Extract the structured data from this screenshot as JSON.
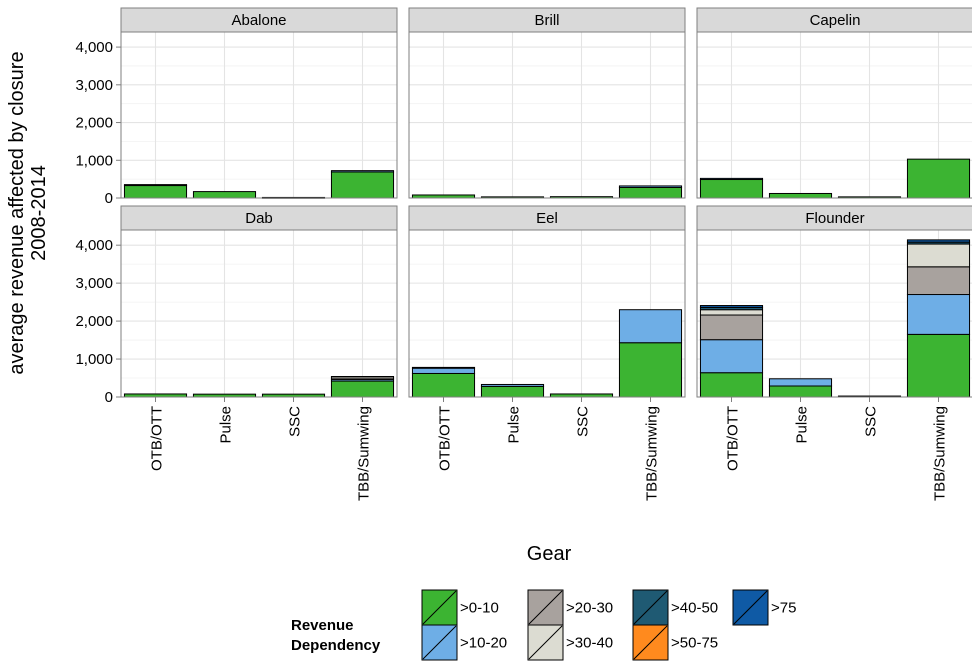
{
  "chart_data": {
    "type": "bar",
    "stacked": true,
    "facet_by": "species",
    "ylabel_lines": [
      "average revenue affected by closure",
      "2008-2014"
    ],
    "xlabel": "Gear",
    "ylim": [
      0,
      4400
    ],
    "y_ticks": [
      0,
      1000,
      2000,
      3000,
      4000
    ],
    "y_tick_labels": [
      "0",
      "1,000",
      "2,000",
      "3,000",
      "4,000"
    ],
    "categories": [
      "OTB/OTT",
      "Pulse",
      "SSC",
      "TBB/Sumwing"
    ],
    "grid": true,
    "legend": {
      "position": "bottom",
      "title_lines": [
        "Revenue",
        "Dependency"
      ],
      "items": [
        {
          "label": ">0-10",
          "color": "#3cb432"
        },
        {
          "label": ">10-20",
          "color": "#6eaee6"
        },
        {
          "label": ">20-30",
          "color": "#a8a29e"
        },
        {
          "label": ">30-40",
          "color": "#dcdcd2"
        },
        {
          "label": ">40-50",
          "color": "#1f5a73"
        },
        {
          "label": ">50-75",
          "color": "#ff8a1e"
        },
        {
          "label": ">75",
          "color": "#0f5aa5"
        }
      ]
    },
    "panels": [
      {
        "title": "Abalone",
        "bars": [
          {
            "category": "OTB/OTT",
            "segments": [
              {
                "level": ">0-10",
                "value": 330
              },
              {
                "level": ">10-20",
                "value": 25
              }
            ]
          },
          {
            "category": "Pulse",
            "segments": [
              {
                "level": ">0-10",
                "value": 170
              }
            ]
          },
          {
            "category": "SSC",
            "segments": [
              {
                "level": ">0-10",
                "value": 15
              }
            ]
          },
          {
            "category": "TBB/Sumwing",
            "segments": [
              {
                "level": ">0-10",
                "value": 690
              },
              {
                "level": ">10-20",
                "value": 35
              }
            ]
          }
        ]
      },
      {
        "title": "Brill",
        "bars": [
          {
            "category": "OTB/OTT",
            "segments": [
              {
                "level": ">0-10",
                "value": 80
              }
            ]
          },
          {
            "category": "Pulse",
            "segments": [
              {
                "level": ">0-10",
                "value": 30
              }
            ]
          },
          {
            "category": "SSC",
            "segments": [
              {
                "level": ">0-10",
                "value": 35
              }
            ]
          },
          {
            "category": "TBB/Sumwing",
            "segments": [
              {
                "level": ">0-10",
                "value": 280
              },
              {
                "level": ">10-20",
                "value": 40
              }
            ]
          }
        ]
      },
      {
        "title": "Capelin",
        "bars": [
          {
            "category": "OTB/OTT",
            "segments": [
              {
                "level": ">0-10",
                "value": 490
              },
              {
                "level": ">10-20",
                "value": 30
              }
            ]
          },
          {
            "category": "Pulse",
            "segments": [
              {
                "level": ">0-10",
                "value": 120
              }
            ]
          },
          {
            "category": "SSC",
            "segments": [
              {
                "level": ">0-10",
                "value": 30
              }
            ]
          },
          {
            "category": "TBB/Sumwing",
            "segments": [
              {
                "level": ">0-10",
                "value": 1030
              }
            ]
          }
        ]
      },
      {
        "title": "Dab",
        "bars": [
          {
            "category": "OTB/OTT",
            "segments": [
              {
                "level": ">0-10",
                "value": 80
              }
            ]
          },
          {
            "category": "Pulse",
            "segments": [
              {
                "level": ">0-10",
                "value": 75
              }
            ]
          },
          {
            "category": "SSC",
            "segments": [
              {
                "level": ">0-10",
                "value": 75
              }
            ]
          },
          {
            "category": "TBB/Sumwing",
            "segments": [
              {
                "level": ">0-10",
                "value": 420
              },
              {
                "level": ">10-20",
                "value": 40
              },
              {
                "level": ">20-30",
                "value": 40
              },
              {
                "level": ">30-40",
                "value": 40
              }
            ]
          }
        ]
      },
      {
        "title": "Eel",
        "bars": [
          {
            "category": "OTB/OTT",
            "segments": [
              {
                "level": ">0-10",
                "value": 620
              },
              {
                "level": ">10-20",
                "value": 140
              },
              {
                "level": ">30-40",
                "value": 20
              }
            ]
          },
          {
            "category": "Pulse",
            "segments": [
              {
                "level": ">0-10",
                "value": 280
              },
              {
                "level": ">10-20",
                "value": 50
              }
            ]
          },
          {
            "category": "SSC",
            "segments": [
              {
                "level": ">0-10",
                "value": 80
              }
            ]
          },
          {
            "category": "TBB/Sumwing",
            "segments": [
              {
                "level": ">0-10",
                "value": 1430
              },
              {
                "level": ">10-20",
                "value": 870
              }
            ]
          }
        ]
      },
      {
        "title": "Flounder",
        "bars": [
          {
            "category": "OTB/OTT",
            "segments": [
              {
                "level": ">0-10",
                "value": 640
              },
              {
                "level": ">10-20",
                "value": 870
              },
              {
                "level": ">20-30",
                "value": 650
              },
              {
                "level": ">30-40",
                "value": 140
              },
              {
                "level": ">40-50",
                "value": 60
              },
              {
                "level": ">75",
                "value": 50
              }
            ]
          },
          {
            "category": "Pulse",
            "segments": [
              {
                "level": ">0-10",
                "value": 290
              },
              {
                "level": ">10-20",
                "value": 190
              }
            ]
          },
          {
            "category": "SSC",
            "segments": [
              {
                "level": ">0-10",
                "value": 25
              }
            ]
          },
          {
            "category": "TBB/Sumwing",
            "segments": [
              {
                "level": ">0-10",
                "value": 1650
              },
              {
                "level": ">10-20",
                "value": 1050
              },
              {
                "level": ">20-30",
                "value": 730
              },
              {
                "level": ">30-40",
                "value": 600
              },
              {
                "level": ">40-50",
                "value": 50
              },
              {
                "level": ">75",
                "value": 60
              }
            ]
          }
        ]
      }
    ]
  }
}
